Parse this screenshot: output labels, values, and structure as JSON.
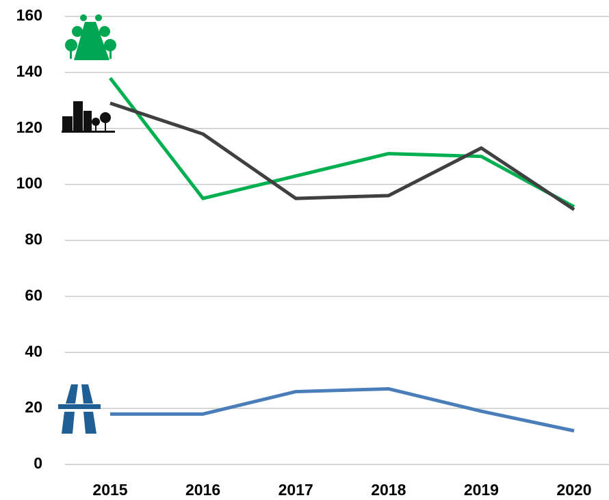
{
  "chart_data": {
    "type": "line",
    "categories": [
      "2015",
      "2016",
      "2017",
      "2018",
      "2019",
      "2020"
    ],
    "series": [
      {
        "color": "#4a7ebb",
        "values": [
          18,
          18,
          26,
          27,
          19,
          12
        ]
      },
      {
        "color": "#00b050",
        "values": [
          138,
          95,
          103,
          111,
          110,
          92
        ]
      },
      {
        "color": "#404040",
        "values": [
          129,
          118,
          95,
          96,
          113,
          91
        ]
      }
    ],
    "ylim": [
      0,
      160
    ],
    "yticks": [
      0,
      20,
      40,
      60,
      80,
      100,
      120,
      140,
      160
    ],
    "grid": true
  }
}
